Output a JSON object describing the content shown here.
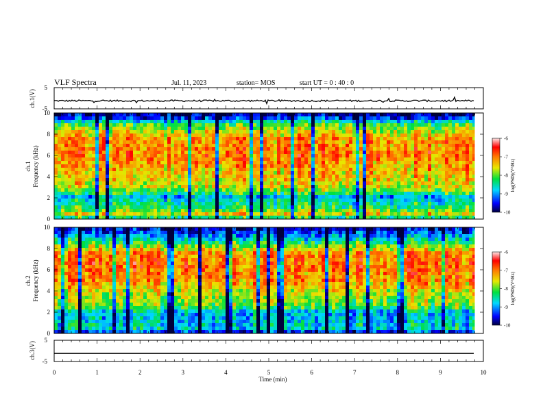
{
  "header": {
    "title": "VLF Spectra",
    "date": "Jul. 11, 2023",
    "station": "station= MOS",
    "start": "start  UT =  0 : 40 : 0"
  },
  "chart_data": [
    {
      "type": "line",
      "ylabel": "ch.1(V)",
      "ylim": [
        -5,
        5
      ],
      "yticks": [
        "5",
        "-5"
      ],
      "xlim": [
        0,
        10
      ],
      "series": [
        {
          "values_note": "",
          "level": -1.2
        }
      ]
    },
    {
      "type": "heatmap",
      "ylabel": "ch.1",
      "ylabel2": "Frequency (kHz)",
      "ylim": [
        0,
        10
      ],
      "yticks": [
        "0",
        "2",
        "4",
        "6",
        "8",
        "10"
      ],
      "xlim": [
        0,
        10
      ],
      "data_end_min": 9.8,
      "colorbar": {
        "label": "log(PSD)(V²/Hz)",
        "range": [
          -10,
          -6
        ],
        "ticks": [
          "-6",
          "-7",
          "-8",
          "-9",
          "-10"
        ]
      },
      "profile": [
        {
          "f": 0.0,
          "v": -9.6
        },
        {
          "f": 0.3,
          "v": -7.2
        },
        {
          "f": 1.0,
          "v": -8.2
        },
        {
          "f": 1.8,
          "v": -8.6
        },
        {
          "f": 2.0,
          "v": -9.1
        },
        {
          "f": 2.3,
          "v": -8.4
        },
        {
          "f": 3.0,
          "v": -7.6
        },
        {
          "f": 4.5,
          "v": -7.3
        },
        {
          "f": 6.0,
          "v": -7.0
        },
        {
          "f": 7.5,
          "v": -7.1
        },
        {
          "f": 8.3,
          "v": -7.6
        },
        {
          "f": 9.0,
          "v": -8.2
        },
        {
          "f": 9.5,
          "v": -9.3
        },
        {
          "f": 10.0,
          "v": -9.9
        }
      ]
    },
    {
      "type": "heatmap",
      "ylabel": "ch.2",
      "ylabel2": "Frequency (kHz)",
      "ylim": [
        0,
        10
      ],
      "yticks": [
        "0",
        "2",
        "4",
        "6",
        "8",
        "10"
      ],
      "xlim": [
        0,
        10
      ],
      "data_end_min": 9.8,
      "colorbar": {
        "label": "log(PSD)(V²/Hz)",
        "range": [
          -10,
          -6
        ],
        "ticks": [
          "-6",
          "-7",
          "-8",
          "-9",
          "-10"
        ]
      },
      "profile": [
        {
          "f": 0.0,
          "v": -9.7
        },
        {
          "f": 0.4,
          "v": -8.6
        },
        {
          "f": 1.2,
          "v": -8.8
        },
        {
          "f": 2.0,
          "v": -8.9
        },
        {
          "f": 2.5,
          "v": -8.0
        },
        {
          "f": 4.0,
          "v": -7.6
        },
        {
          "f": 5.0,
          "v": -7.1
        },
        {
          "f": 6.5,
          "v": -6.9
        },
        {
          "f": 7.6,
          "v": -7.1
        },
        {
          "f": 8.3,
          "v": -7.9
        },
        {
          "f": 9.0,
          "v": -8.8
        },
        {
          "f": 10.0,
          "v": -9.8
        }
      ]
    },
    {
      "type": "line",
      "ylabel": "ch.3(V)",
      "ylim": [
        -5,
        5
      ],
      "yticks": [
        "5",
        "-5"
      ],
      "xlim": [
        0,
        10
      ],
      "series": [
        {
          "level": -1.2
        }
      ]
    }
  ],
  "xaxis": {
    "label": "Time (min)",
    "ticks": [
      "0",
      "1",
      "2",
      "3",
      "4",
      "5",
      "6",
      "7",
      "8",
      "9",
      "10"
    ]
  }
}
